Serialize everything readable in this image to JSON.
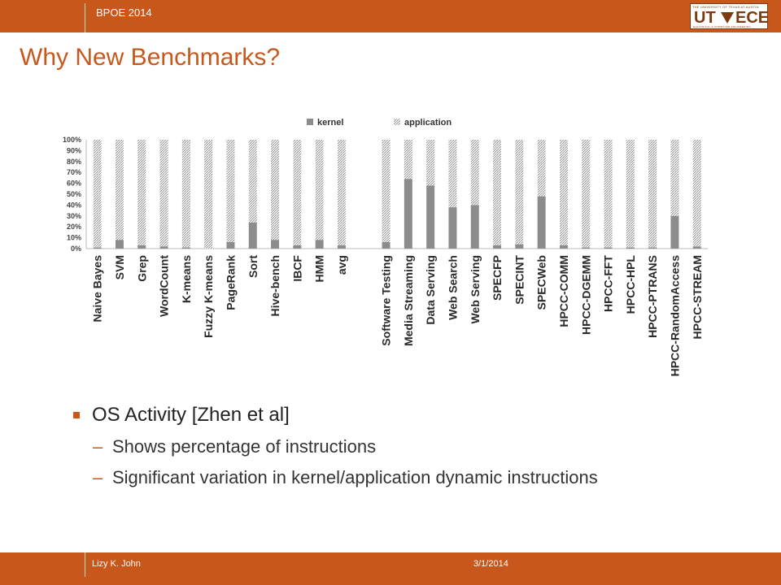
{
  "header": {
    "conference": "BPOE 2014",
    "logo": {
      "ut": "UT",
      "ece": "ECE",
      "small_text": "THE UNIVERSITY OF TEXAS AT AUSTIN",
      "sub_text": "ELECTRICAL & COMPUTER ENGINEERING"
    }
  },
  "slide": {
    "title": "Why New Benchmarks?"
  },
  "chart_data": {
    "type": "bar",
    "stacked": true,
    "normalized": true,
    "legend_position": "top",
    "categories": [
      "Naive Bayes",
      "SVM",
      "Grep",
      "WordCount",
      "K-means",
      "Fuzzy K-means",
      "PageRank",
      "Sort",
      "Hive-bench",
      "IBCF",
      "HMM",
      "avg",
      "",
      "Software Testing",
      "Media Streaming",
      "Data Serving",
      "Web Search",
      "Web Serving",
      "SPECFP",
      "SPECINT",
      "SPECWeb",
      "HPCC-COMM",
      "HPCC-DGEMM",
      "HPCC-FFT",
      "HPCC-HPL",
      "HPCC-PTRANS",
      "HPCC-RandomAccess",
      "HPCC-STREAM"
    ],
    "series": [
      {
        "name": "kernel",
        "values": [
          1,
          8,
          3,
          2,
          1,
          0,
          6,
          24,
          8,
          3,
          8,
          3,
          null,
          6,
          64,
          58,
          38,
          40,
          3,
          4,
          48,
          3,
          1,
          1,
          1,
          1,
          30,
          2
        ]
      },
      {
        "name": "application",
        "values": [
          99,
          92,
          97,
          98,
          99,
          100,
          94,
          76,
          92,
          97,
          92,
          97,
          null,
          94,
          36,
          42,
          62,
          60,
          97,
          96,
          52,
          97,
          99,
          99,
          99,
          99,
          70,
          98
        ]
      }
    ],
    "yticks": [
      "0%",
      "10%",
      "20%",
      "30%",
      "40%",
      "50%",
      "60%",
      "70%",
      "80%",
      "90%",
      "100%"
    ],
    "ylim": [
      0,
      100
    ],
    "grid": false
  },
  "bullets": {
    "main": "OS Activity [Zhen et al]",
    "sub": [
      "Shows percentage of instructions",
      "Significant variation in kernel/application dynamic instructions"
    ],
    "dash": "–"
  },
  "footer": {
    "author": "Lizy K. John",
    "date": "3/1/2014"
  },
  "colors": {
    "accent": "#c8571b",
    "kernel": "#8c8c8c",
    "application_hatch": "#9a9a9a"
  }
}
